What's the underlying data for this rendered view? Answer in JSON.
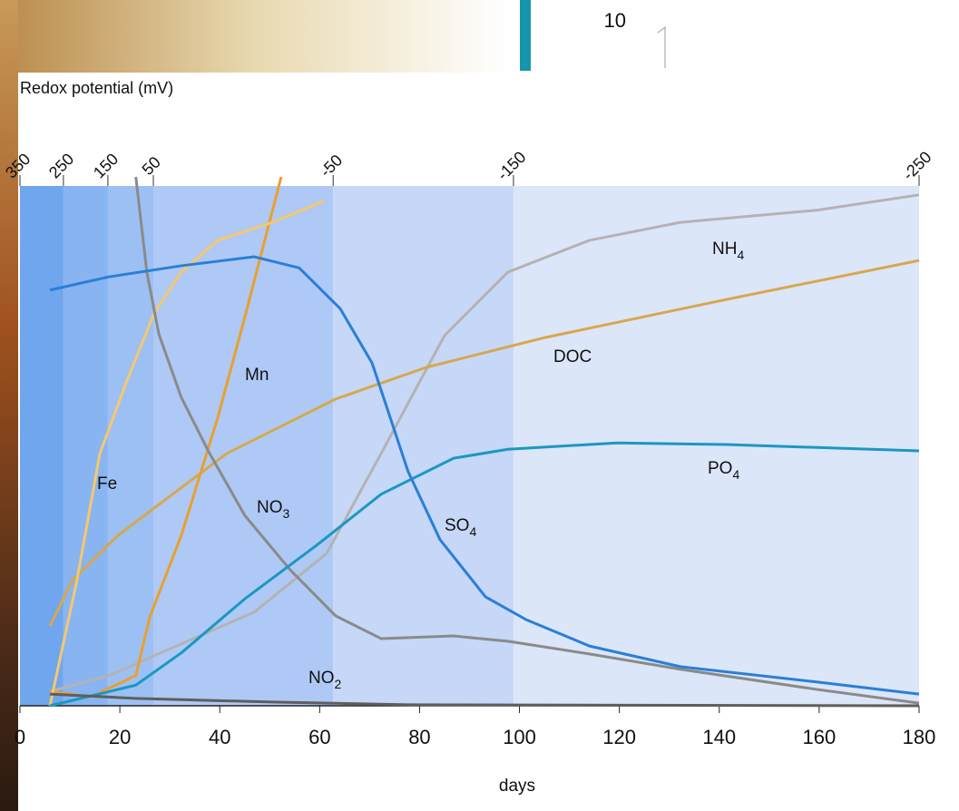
{
  "fragment_label": "10",
  "chart_data": {
    "type": "line",
    "x2label": "Redox potential (mV)",
    "xlabel": "days",
    "xlim": [
      0,
      180
    ],
    "xticks": [
      0,
      20,
      40,
      60,
      80,
      100,
      120,
      140,
      160,
      180
    ],
    "ylim": [
      0,
      100
    ],
    "x2ticks": [
      {
        "value": 0,
        "label": "350"
      },
      {
        "value": 8.7,
        "label": "250"
      },
      {
        "value": 17.6,
        "label": "150"
      },
      {
        "value": 26.7,
        "label": "50"
      },
      {
        "value": 62.7,
        "label": "-50"
      },
      {
        "value": 98.8,
        "label": "-150"
      },
      {
        "value": 180,
        "label": "-250"
      }
    ],
    "band_colors": [
      "#6fa6ee",
      "#88b4f1",
      "#9cc0f3",
      "#aec9f5",
      "#c6d7f7",
      "#dce6f9"
    ],
    "series": [
      {
        "name": "NH",
        "sub": "4",
        "color": "#b3b3b3",
        "x": [
          6,
          17.8,
          32.3,
          46.9,
          61.4,
          72.3,
          85,
          97.7,
          114,
          132.2,
          159.5,
          180
        ],
        "values": [
          2.7,
          5.7,
          11.7,
          17.7,
          28.8,
          47.7,
          70,
          82,
          88,
          91.4,
          93.7,
          96.6
        ]
      },
      {
        "name": "DOC",
        "color": "#d6a84e",
        "x": [
          6,
          10.5,
          19.6,
          26.9,
          41.4,
          63.2,
          81.4,
          105,
          141.3,
          180
        ],
        "values": [
          15.1,
          23.7,
          32.2,
          37.4,
          47.7,
          58,
          64,
          69.6,
          76.8,
          84.2
        ]
      },
      {
        "name": "Mn",
        "color": "#e8a030",
        "x": [
          6,
          14.2,
          23.2,
          26,
          32.3,
          39.6,
          45,
          52.3
        ],
        "values": [
          2.7,
          1.7,
          5.7,
          16.8,
          32.2,
          54.5,
          73.4,
          100
        ]
      },
      {
        "name": "Fe",
        "color": "#f5c86e",
        "x": [
          6,
          11.4,
          16,
          21.4,
          26.9,
          32.3,
          39.6,
          50.5,
          60.8
        ],
        "values": [
          0,
          23.7,
          47.7,
          61.4,
          74.3,
          82,
          88,
          91.4,
          95.4
        ]
      },
      {
        "name": "NO",
        "sub": "3",
        "color": "#8a8a8a",
        "x": [
          23.2,
          25.4,
          27.8,
          32.3,
          37.8,
          45,
          54.1,
          63.2,
          72.3,
          86.8,
          97.7,
          114,
          132.2,
          159.5,
          180
        ],
        "values": [
          100,
          82,
          70.3,
          58.3,
          48,
          36,
          25.7,
          17,
          12.7,
          13.2,
          12.2,
          9.8,
          6.9,
          3.1,
          0.5
        ]
      },
      {
        "name": "PO",
        "sub": "4",
        "color": "#1a98c2",
        "x": [
          6,
          23.2,
          32.3,
          45,
          59.6,
          72.3,
          86.8,
          97.7,
          119.5,
          141.3,
          180
        ],
        "values": [
          0,
          3.9,
          10,
          20.2,
          30.5,
          40,
          46.8,
          48.5,
          49.7,
          49.4,
          48.2
        ]
      },
      {
        "name": "SO",
        "sub": "4",
        "color": "#2a7fd6",
        "x": [
          6,
          17.8,
          32.3,
          46.9,
          55.9,
          64.1,
          70.5,
          77.7,
          84.1,
          93.2,
          101.3,
          114,
          132.2,
          159.5,
          180
        ],
        "values": [
          78.6,
          81.1,
          83.2,
          84.9,
          82.8,
          75.1,
          64.8,
          44.3,
          31.4,
          20.6,
          16.3,
          11.3,
          7.4,
          4.5,
          2.2
        ]
      },
      {
        "name": "NO",
        "sub": "2",
        "color": "#5e5e5e",
        "x": [
          6,
          23.2,
          50.5,
          77.7,
          180
        ],
        "values": [
          2.2,
          1.4,
          0.7,
          0.2,
          0
        ]
      }
    ]
  }
}
